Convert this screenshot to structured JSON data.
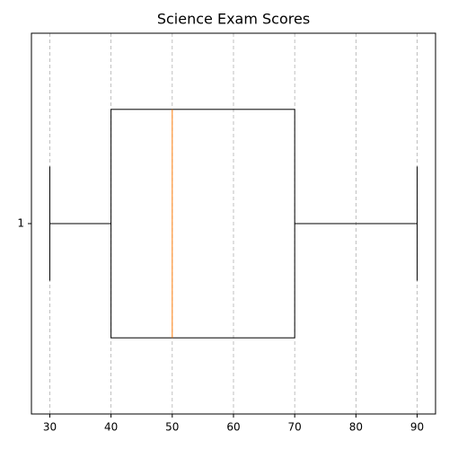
{
  "chart_data": {
    "type": "box",
    "title": "Science Exam Scores",
    "orientation": "horizontal",
    "categories": [
      "1"
    ],
    "boxes": [
      {
        "whislo": 30,
        "q1": 40,
        "med": 50,
        "q3": 70,
        "whishi": 90
      }
    ],
    "color": "#000000",
    "median_color": "#ff7f0e",
    "xlim": [
      27,
      93
    ],
    "xticks": [
      30,
      40,
      50,
      60,
      70,
      80,
      90
    ],
    "grid": true
  }
}
